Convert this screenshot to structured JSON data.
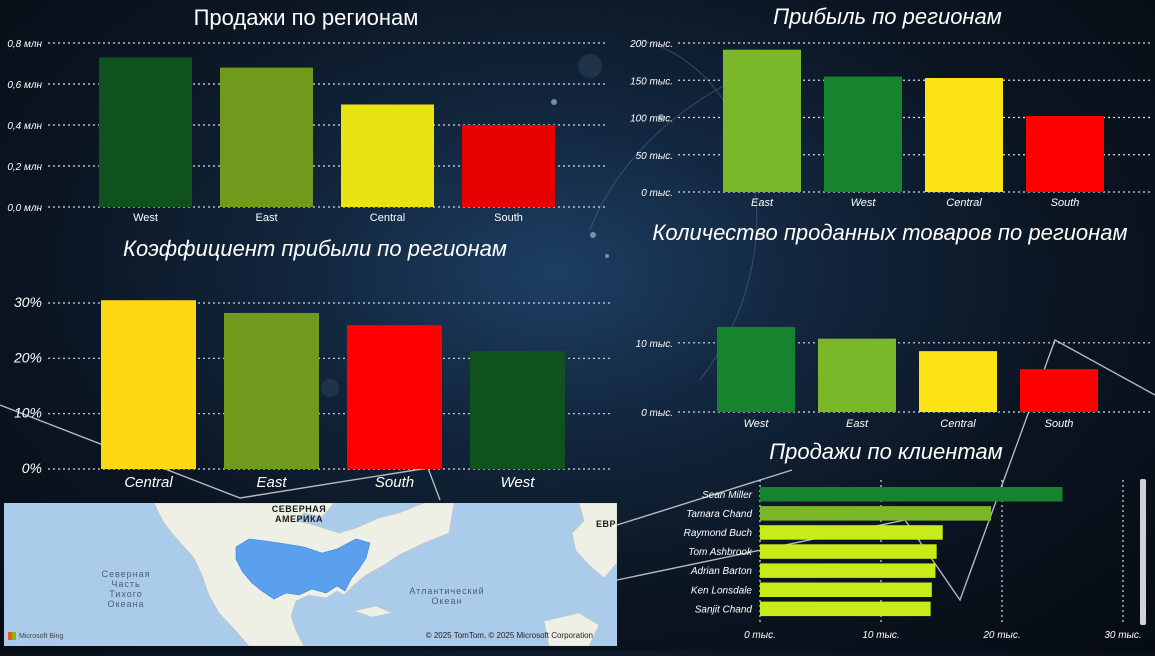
{
  "colors": {
    "dark_green": "#0f521e",
    "olive_green": "#6f9a1c",
    "mid_green": "#16832f",
    "light_green": "#7ab82a",
    "yellow": "#eae314",
    "gold": "#ffd814",
    "red": "#ff0000",
    "lime": "#c8ec1a"
  },
  "chart_data": [
    {
      "id": "sales_by_region",
      "type": "bar",
      "title": "Продажи по регионам",
      "categories": [
        "West",
        "East",
        "Central",
        "South"
      ],
      "values": [
        0.73,
        0.68,
        0.5,
        0.4
      ],
      "unit": "млн",
      "ylim": [
        0,
        0.8
      ],
      "yticks": [
        0,
        0.2,
        0.4,
        0.6,
        0.8
      ],
      "ytick_labels": [
        "0,0 млн",
        "0,2 млн",
        "0,4 млн",
        "0,6 млн",
        "0,8 млн"
      ],
      "bar_colors": [
        "#0f521e",
        "#6f9a1c",
        "#eae314",
        "#e60000"
      ],
      "grid": true
    },
    {
      "id": "profit_by_region",
      "type": "bar",
      "title": "Прибыль по регионам",
      "categories": [
        "East",
        "West",
        "Central",
        "South"
      ],
      "values": [
        191,
        155,
        153,
        102
      ],
      "unit": "тыс.",
      "ylim": [
        0,
        200
      ],
      "yticks": [
        0,
        50,
        100,
        150,
        200
      ],
      "ytick_labels": [
        "0 тыс.",
        "50 тыс.",
        "100 тыс.",
        "150 тыс.",
        "200 тыс."
      ],
      "bar_colors": [
        "#7ab82a",
        "#16832f",
        "#fce315",
        "#ff0000"
      ],
      "grid": true
    },
    {
      "id": "profit_ratio_by_region",
      "type": "bar",
      "title": "Коэффициент прибыли по регионам",
      "categories": [
        "Central",
        "East",
        "South",
        "West"
      ],
      "values": [
        30.5,
        28.2,
        26.0,
        21.3
      ],
      "unit": "%",
      "ylim": [
        0,
        30
      ],
      "yticks": [
        0,
        10,
        20,
        30
      ],
      "ytick_labels": [
        "0%",
        "10%",
        "20%",
        "30%"
      ],
      "bar_colors": [
        "#ffd814",
        "#6f9a1c",
        "#ff0000",
        "#0f521e"
      ],
      "grid": true
    },
    {
      "id": "quantity_by_region",
      "type": "bar",
      "title": "Количество проданных товаров по регионам",
      "categories": [
        "West",
        "East",
        "Central",
        "South"
      ],
      "values": [
        12.3,
        10.6,
        8.8,
        6.2
      ],
      "unit": "тыс.",
      "ylim": [
        0,
        12
      ],
      "yticks": [
        0,
        10
      ],
      "ytick_labels": [
        "0 тыс.",
        "10 тыс."
      ],
      "bar_colors": [
        "#16832f",
        "#7ab82a",
        "#fce315",
        "#ff0000"
      ],
      "grid": true
    },
    {
      "id": "sales_by_customer",
      "type": "bar",
      "orientation": "horizontal",
      "title": "Продажи по клиентам",
      "categories": [
        "Sean Miller",
        "Tamara Chand",
        "Raymond Buch",
        "Tom Ashbrook",
        "Adrian Barton",
        "Ken Lonsdale",
        "Sanjit Chand"
      ],
      "values": [
        25.0,
        19.1,
        15.1,
        14.6,
        14.5,
        14.2,
        14.1
      ],
      "unit": "тыс.",
      "xlim": [
        0,
        30
      ],
      "xticks": [
        0,
        10,
        20,
        30
      ],
      "xtick_labels": [
        "0 тыс.",
        "10 тыс.",
        "20 тыс.",
        "30 тыс."
      ],
      "bar_colors": [
        "#16832f",
        "#7ab82a",
        "#c8ec1a",
        "#c8ec1a",
        "#c8ec1a",
        "#c8ec1a",
        "#c8ec1a"
      ],
      "grid": true
    }
  ],
  "map": {
    "labels": {
      "north_america": [
        "СЕВЕРНАЯ",
        "АМЕРИКА"
      ],
      "pacific": [
        "Северная",
        "Часть",
        "Тихого",
        "Океана"
      ],
      "atlantic": [
        "Атлантический",
        "Океан"
      ],
      "europe_edge": "ЕВР"
    },
    "provider": "Microsoft Bing",
    "copyright": "© 2025 TomTom, © 2025 Microsoft Corporation",
    "highlight_color": "#5aa0ee"
  }
}
